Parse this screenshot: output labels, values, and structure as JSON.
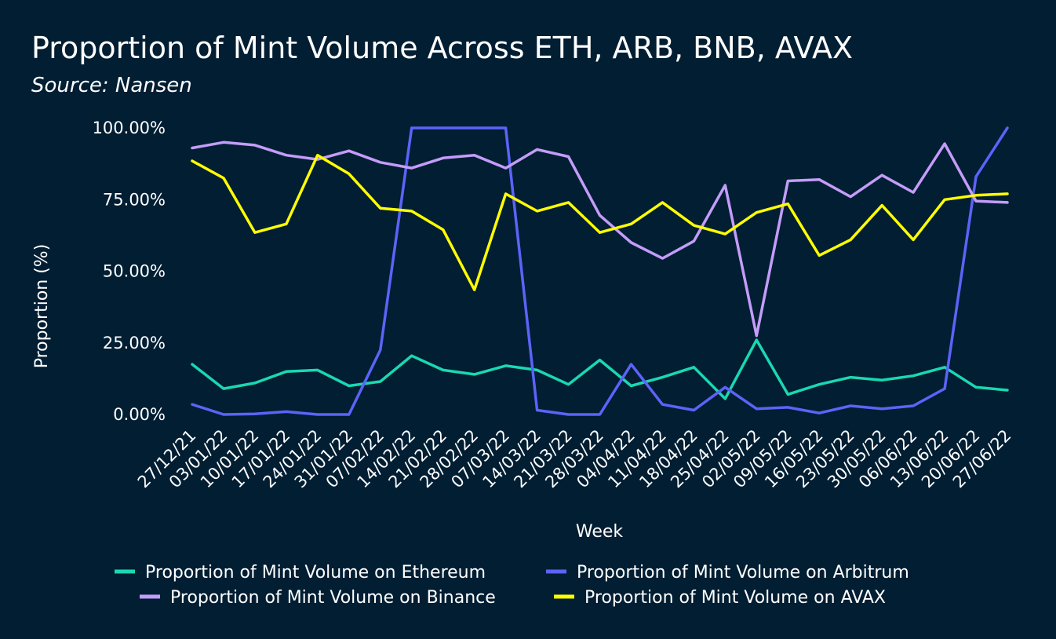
{
  "chart_data": {
    "type": "line",
    "title": "Proportion of Mint Volume Across ETH, ARB, BNB, AVAX",
    "subtitle": "Source: Nansen",
    "xlabel": "Week",
    "ylabel": "Proportion (%)",
    "ylim": [
      0,
      100
    ],
    "yticks": [
      "0.00%",
      "25.00%",
      "50.00%",
      "75.00%",
      "100.00%"
    ],
    "categories": [
      "27/12/21",
      "03/01/22",
      "10/01/22",
      "17/01/22",
      "24/01/22",
      "31/01/22",
      "07/02/22",
      "14/02/22",
      "21/02/22",
      "28/02/22",
      "07/03/22",
      "14/03/22",
      "21/03/22",
      "28/03/22",
      "04/04/22",
      "11/04/22",
      "18/04/22",
      "25/04/22",
      "02/05/22",
      "09/05/22",
      "16/05/22",
      "23/05/22",
      "30/05/22",
      "06/06/22",
      "13/06/22",
      "20/06/22",
      "27/06/22"
    ],
    "series": [
      {
        "name": "Proportion of Mint Volume on Ethereum",
        "color": "#1ad8b1",
        "values": [
          17.5,
          9,
          11,
          15,
          15.5,
          10,
          11.5,
          20.5,
          15.5,
          14,
          17,
          15.5,
          10.5,
          19,
          10,
          13,
          16.5,
          5.5,
          26,
          7,
          10.5,
          13,
          12,
          13.5,
          16.5,
          9.5,
          8.5
        ]
      },
      {
        "name": "Proportion of Mint Volume on Arbitrum",
        "color": "#5c63f7",
        "values": [
          3.5,
          0,
          0.2,
          1,
          0,
          0,
          22.5,
          100,
          100,
          100,
          100,
          1.5,
          0,
          0,
          17.5,
          3.5,
          1.5,
          9.5,
          2,
          2.5,
          0.5,
          3,
          2,
          3,
          9,
          83,
          100
        ]
      },
      {
        "name": "Proportion of Mint Volume on Binance",
        "color": "#c49cf9",
        "values": [
          93,
          95,
          94,
          90.5,
          89,
          92,
          88,
          86,
          89.5,
          90.5,
          86,
          92.5,
          90,
          69.5,
          60,
          54.5,
          60.5,
          80,
          27.5,
          81.5,
          82,
          76,
          83.5,
          77.5,
          94.5,
          74.5,
          74
        ]
      },
      {
        "name": "Proportion of Mint Volume on AVAX",
        "color": "#ffff00",
        "values": [
          88.5,
          82.5,
          63.5,
          66.5,
          90.5,
          84,
          72,
          71,
          64.5,
          43.5,
          77,
          71,
          74,
          63.5,
          66.5,
          74,
          66,
          63,
          70.5,
          73.5,
          55.5,
          61,
          73,
          61,
          75,
          76.5,
          77
        ]
      }
    ],
    "grid": false,
    "legend_position": "bottom-center"
  }
}
